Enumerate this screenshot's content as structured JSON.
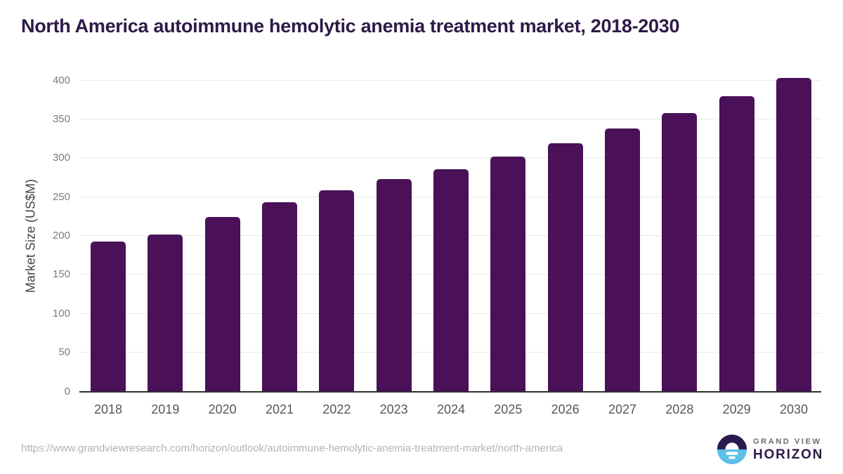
{
  "title": "North America autoimmune hemolytic anemia treatment market, 2018-2030",
  "chart_data": {
    "type": "bar",
    "title": "North America autoimmune hemolytic anemia treatment market, 2018-2030",
    "categories": [
      "2018",
      "2019",
      "2020",
      "2021",
      "2022",
      "2023",
      "2024",
      "2025",
      "2026",
      "2027",
      "2028",
      "2029",
      "2030"
    ],
    "values": [
      193,
      202,
      224,
      243,
      259,
      273,
      286,
      302,
      319,
      338,
      358,
      380,
      403
    ],
    "xlabel": "",
    "ylabel": "Market Size (US$M)",
    "ylim": [
      0,
      400
    ],
    "yticks": [
      0,
      50,
      100,
      150,
      200,
      250,
      300,
      350,
      400
    ],
    "grid": true,
    "legend": false,
    "bar_color": "#4a1158"
  },
  "colors": {
    "title": "#2e1a47",
    "bar": "#4a1158",
    "gridline": "#e8e8e8",
    "axis_line": "#2f2f2f",
    "logo_purple": "#2b1a4e",
    "logo_blue": "#5ac0e8"
  },
  "footer": {
    "source_url": "https://www.grandviewresearch.com/horizon/outlook/autoimmune-hemolytic-anemia-treatment-market/north-america",
    "logo": {
      "brand_top": "GRAND VIEW",
      "brand_bottom": "HORIZON"
    }
  }
}
